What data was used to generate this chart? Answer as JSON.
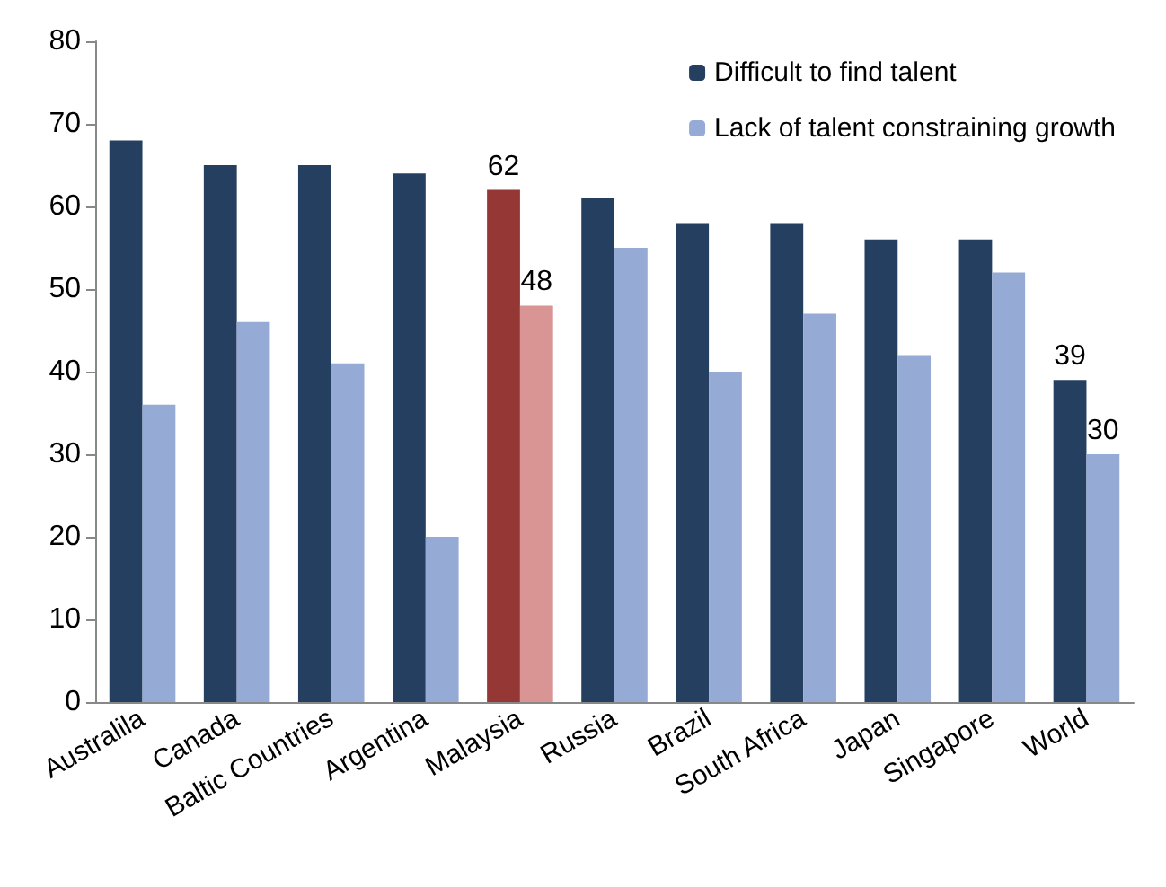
{
  "chart_data": {
    "type": "bar",
    "categories": [
      "Australila",
      "Canada",
      "Baltic Countries",
      "Argentina",
      "Malaysia",
      "Russia",
      "Brazil",
      "South Africa",
      "Japan",
      "Singapore",
      "World"
    ],
    "series": [
      {
        "name": "Difficult to find talent",
        "color": "#243f60",
        "colors": [
          "#243f60",
          "#243f60",
          "#243f60",
          "#243f60",
          "#953735",
          "#243f60",
          "#243f60",
          "#243f60",
          "#243f60",
          "#243f60",
          "#243f60"
        ],
        "values": [
          68,
          65,
          65,
          64,
          62,
          61,
          58,
          58,
          56,
          56,
          39
        ],
        "value_labels": [
          null,
          null,
          null,
          null,
          "62",
          null,
          null,
          null,
          null,
          null,
          "39"
        ]
      },
      {
        "name": "Lack of talent constraining growth",
        "color": "#95abd6",
        "colors": [
          "#95abd6",
          "#95abd6",
          "#95abd6",
          "#95abd6",
          "#d99594",
          "#95abd6",
          "#95abd6",
          "#95abd6",
          "#95abd6",
          "#95abd6",
          "#95abd6"
        ],
        "values": [
          36,
          46,
          41,
          20,
          48,
          55,
          40,
          47,
          42,
          52,
          30
        ],
        "value_labels": [
          null,
          null,
          null,
          null,
          "48",
          null,
          null,
          null,
          null,
          null,
          "30"
        ]
      }
    ],
    "ylim": [
      0,
      80
    ],
    "yticks": [
      0,
      10,
      20,
      30,
      40,
      50,
      60,
      70,
      80
    ],
    "grid": false,
    "legend": "top right"
  }
}
